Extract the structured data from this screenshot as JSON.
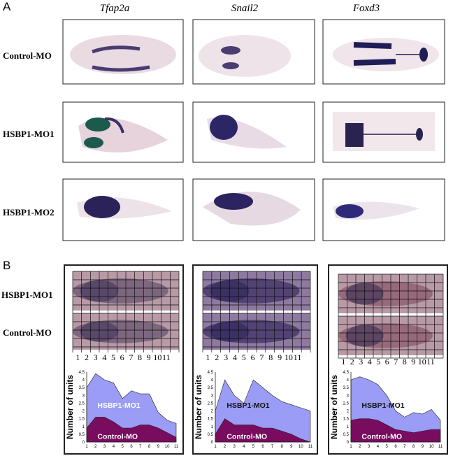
{
  "panel_a": {
    "letter": "A",
    "genes": [
      "Tfap2a",
      "Snail2",
      "Foxd3"
    ],
    "rows": [
      "Control-MO",
      "HSBP1-MO1",
      "HSBP1-MO2"
    ]
  },
  "panel_b": {
    "letter": "B",
    "image_rows": [
      "HSBP1-MO1",
      "Control-MO"
    ],
    "grid_numbers": [
      "1",
      "2",
      "3",
      "4",
      "5",
      "6",
      "7",
      "8",
      "9",
      "10",
      "11"
    ]
  },
  "chart_data": [
    {
      "type": "area",
      "ylabel": "Number of units",
      "x": [
        1,
        2,
        3,
        4,
        5,
        6,
        7,
        8,
        9,
        10,
        11
      ],
      "yticks": [
        "0",
        "0.5",
        "1",
        "1.5",
        "2",
        "2.5",
        "3",
        "3.5",
        "4",
        "4.5"
      ],
      "xticks": [
        "1",
        "2",
        "3",
        "4",
        "5",
        "6",
        "7",
        "8",
        "9",
        "10",
        "11"
      ],
      "ylim": [
        0,
        4.5
      ],
      "series": [
        {
          "name": "HSBP1-MO1",
          "color": "#9a9cf5",
          "values": [
            3.5,
            4.4,
            4.0,
            3.8,
            2.8,
            3.3,
            3.1,
            3.1,
            1.9,
            1.4,
            1.2
          ]
        },
        {
          "name": "Control-MO",
          "color": "#7a0c5f",
          "values": [
            0.9,
            1.6,
            1.6,
            1.3,
            0.9,
            0.9,
            1.1,
            1.1,
            0.9,
            0.6,
            0.3
          ]
        }
      ]
    },
    {
      "type": "area",
      "ylabel": "Number of units",
      "x": [
        1,
        2,
        3,
        4,
        5,
        6,
        7,
        8,
        9,
        10,
        11
      ],
      "yticks": [
        "0",
        "0.5",
        "1",
        "1.5",
        "2",
        "2.5",
        "3",
        "3.5",
        "4",
        "4.5"
      ],
      "xticks": [
        "1",
        "2",
        "3",
        "4",
        "5",
        "6",
        "7",
        "8",
        "9",
        "10",
        "11"
      ],
      "ylim": [
        0,
        4.5
      ],
      "series": [
        {
          "name": "HSBP1-MO1",
          "color": "#9a9cf5",
          "values": [
            2.0,
            4.0,
            3.0,
            2.5,
            4.0,
            3.5,
            3.0,
            2.6,
            2.4,
            2.2,
            2.0
          ]
        },
        {
          "name": "Control-MO",
          "color": "#7a0c5f",
          "values": [
            0.5,
            1.5,
            1.1,
            1.1,
            1.1,
            0.9,
            0.9,
            0.7,
            0.5,
            0.2,
            0.0
          ]
        }
      ]
    },
    {
      "type": "area",
      "ylabel": "Number of units",
      "x": [
        1,
        2,
        3,
        4,
        5,
        6,
        7,
        8,
        9,
        10,
        11
      ],
      "yticks": [
        "0",
        "0.5",
        "1",
        "1.5",
        "2",
        "2.5",
        "3",
        "3.5",
        "4",
        "4.5"
      ],
      "xticks": [
        "1",
        "2",
        "3",
        "4",
        "5",
        "6",
        "7",
        "8",
        "9",
        "10",
        "11"
      ],
      "ylim": [
        0,
        4.5
      ],
      "series": [
        {
          "name": "HSBP1-MO1",
          "color": "#9a9cf5",
          "values": [
            4.0,
            4.2,
            4.0,
            3.7,
            3.0,
            2.0,
            1.6,
            1.9,
            1.8,
            2.1,
            1.4
          ]
        },
        {
          "name": "Control-MO",
          "color": "#7a0c5f",
          "values": [
            1.4,
            1.5,
            1.5,
            1.4,
            1.1,
            0.8,
            0.7,
            0.6,
            0.7,
            0.8,
            0.8
          ]
        }
      ]
    }
  ]
}
